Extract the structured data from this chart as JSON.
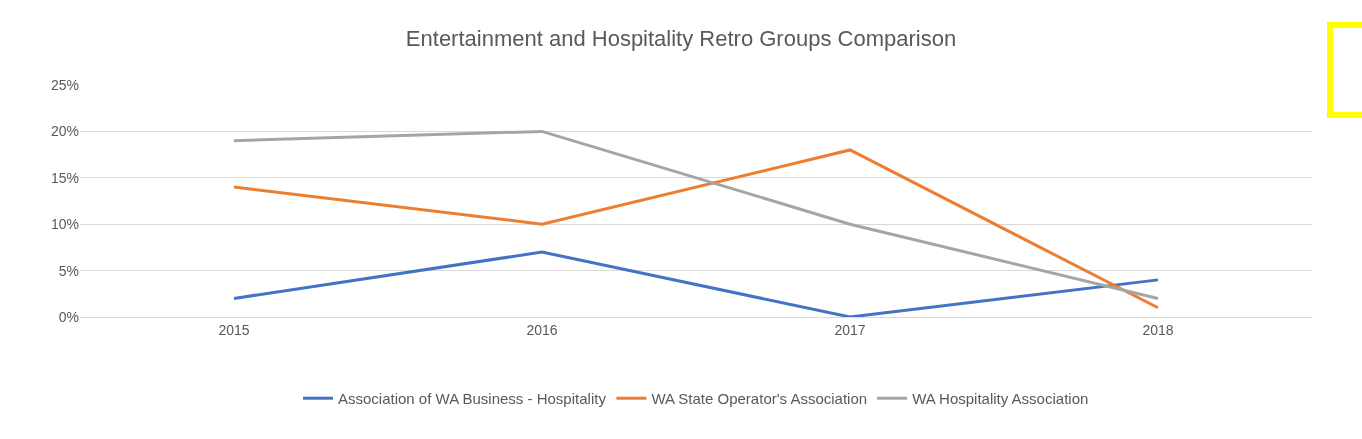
{
  "chart_data": {
    "type": "line",
    "title": "Entertainment and Hospitality Retro Groups Comparison",
    "categories": [
      "2015",
      "2016",
      "2017",
      "2018"
    ],
    "series": [
      {
        "name": "Association of WA Business - Hospitality",
        "color": "#4472c4",
        "values": [
          2,
          7,
          0,
          4
        ]
      },
      {
        "name": "WA State Operator's Association",
        "color": "#ed7d31",
        "values": [
          14,
          10,
          18,
          1
        ]
      },
      {
        "name": "WA Hospitality Association",
        "color": "#a5a5a5",
        "values": [
          19,
          20,
          10,
          2
        ]
      }
    ],
    "ylim": [
      0,
      25
    ],
    "yticks": [
      {
        "value": 0,
        "label": "0%"
      },
      {
        "value": 5,
        "label": "5%"
      },
      {
        "value": 10,
        "label": "10%"
      },
      {
        "value": 15,
        "label": "15%"
      },
      {
        "value": 20,
        "label": "20%"
      },
      {
        "value": 25,
        "label": "25%"
      }
    ],
    "grid": "y",
    "legend": "bottom",
    "marker": "none",
    "line_style": "solid"
  }
}
